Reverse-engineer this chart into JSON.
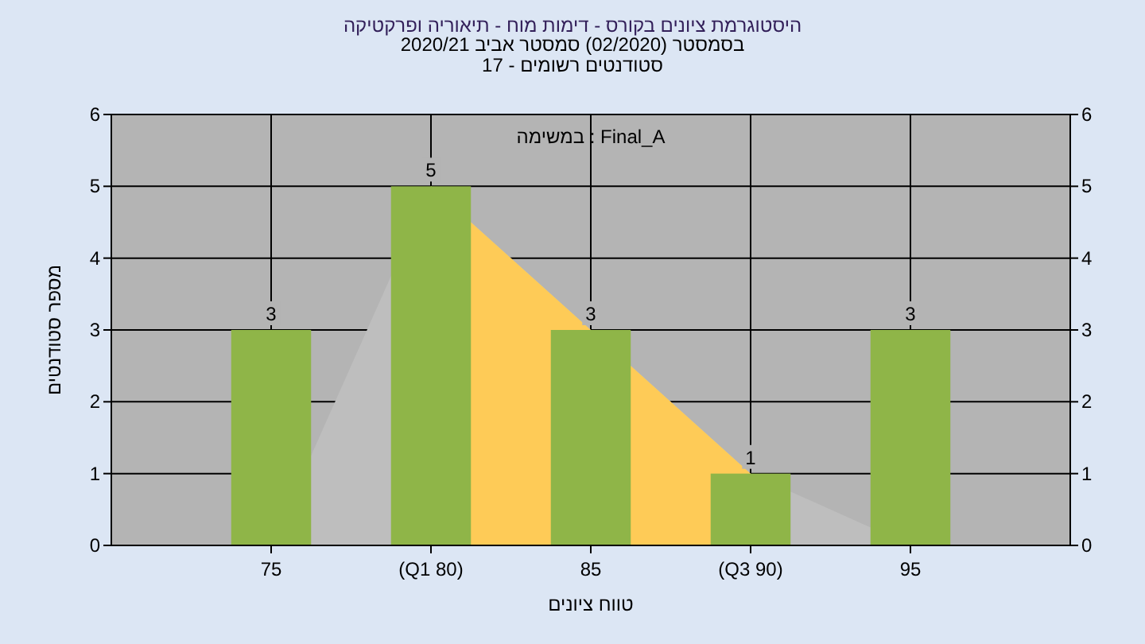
{
  "chart_data": {
    "type": "bar",
    "title": "היסטוגרמת ציונים בקורס - דימות מוח - תיאוריה ופרקטיקה",
    "subtitle": "בסמסטר (02/2020) סמסטר אביב 2020/21",
    "annotations": [
      "סטודנטים רשומים - 17",
      "Final_A : במשימה"
    ],
    "xlabel": "טווח ציונים",
    "ylabel": "מספר סטודנטים",
    "categories": [
      "75",
      "(Q1 80)",
      "85",
      "(Q3 90)",
      "95"
    ],
    "series": [
      {
        "type": "area",
        "color": "#bebebe",
        "values": [
          0,
          5,
          3,
          1,
          0
        ]
      },
      {
        "type": "area",
        "color": "#fecb57",
        "values": [
          null,
          5,
          3,
          1,
          null
        ]
      },
      {
        "color": "#8fb548",
        "values": [
          3,
          5,
          3,
          1,
          3
        ],
        "value_labels": [
          "3",
          "5",
          "3",
          "1",
          "3"
        ]
      }
    ],
    "ylim": [
      0,
      6
    ],
    "yticks": [
      0,
      1,
      2,
      3,
      4,
      5,
      6
    ],
    "y2lim": [
      0,
      6
    ],
    "y2ticks": [
      0,
      1,
      2,
      3,
      4,
      5,
      6
    ],
    "grid": true
  }
}
